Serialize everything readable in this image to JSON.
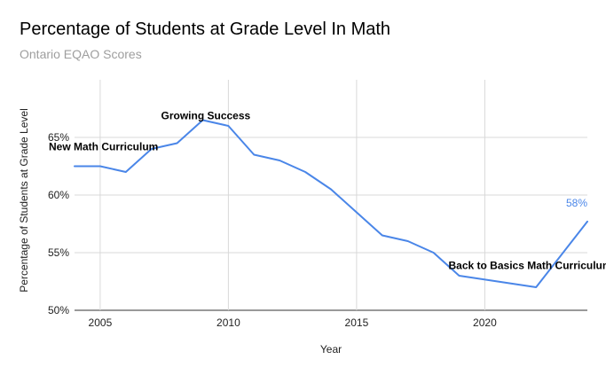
{
  "chart_data": {
    "type": "line",
    "title": "Percentage of Students at Grade Level In Math",
    "subtitle": "Ontario EQAO Scores",
    "xlabel": "Year",
    "ylabel": "Percentage of Students at Grade Level",
    "xlim": [
      2004,
      2024
    ],
    "ylim": [
      50,
      70
    ],
    "x_ticks": [
      2005,
      2010,
      2015,
      2020
    ],
    "x_tick_labels": [
      "2005",
      "2010",
      "2015",
      "2020"
    ],
    "y_ticks": [
      50,
      55,
      60,
      65
    ],
    "y_tick_labels": [
      "50%",
      "55%",
      "60%",
      "65%"
    ],
    "grid": true,
    "legend": "none",
    "series": [
      {
        "name": "Percentage of Students at Grade Level",
        "color": "#4a86e8",
        "x": [
          2004,
          2005,
          2006,
          2007,
          2008,
          2009,
          2010,
          2011,
          2012,
          2013,
          2014,
          2015,
          2016,
          2017,
          2018,
          2019,
          2022,
          2024
        ],
        "values": [
          62.5,
          62.5,
          62,
          64,
          64.5,
          66.5,
          66,
          63.5,
          63,
          62,
          60.5,
          58.5,
          56.5,
          56,
          55,
          53,
          52,
          57.7
        ]
      }
    ],
    "annotations": [
      {
        "text": "New Math Curriculum",
        "x": 2004,
        "y": 64.2
      },
      {
        "text": "Growing Success",
        "x": 2009,
        "y": 66.9
      },
      {
        "text": "Back to Basics Math Curriculum",
        "x": 2019,
        "y": 53.9
      }
    ],
    "data_labels": [
      {
        "text": "58%",
        "x": 2024,
        "y": 59.3
      }
    ]
  }
}
